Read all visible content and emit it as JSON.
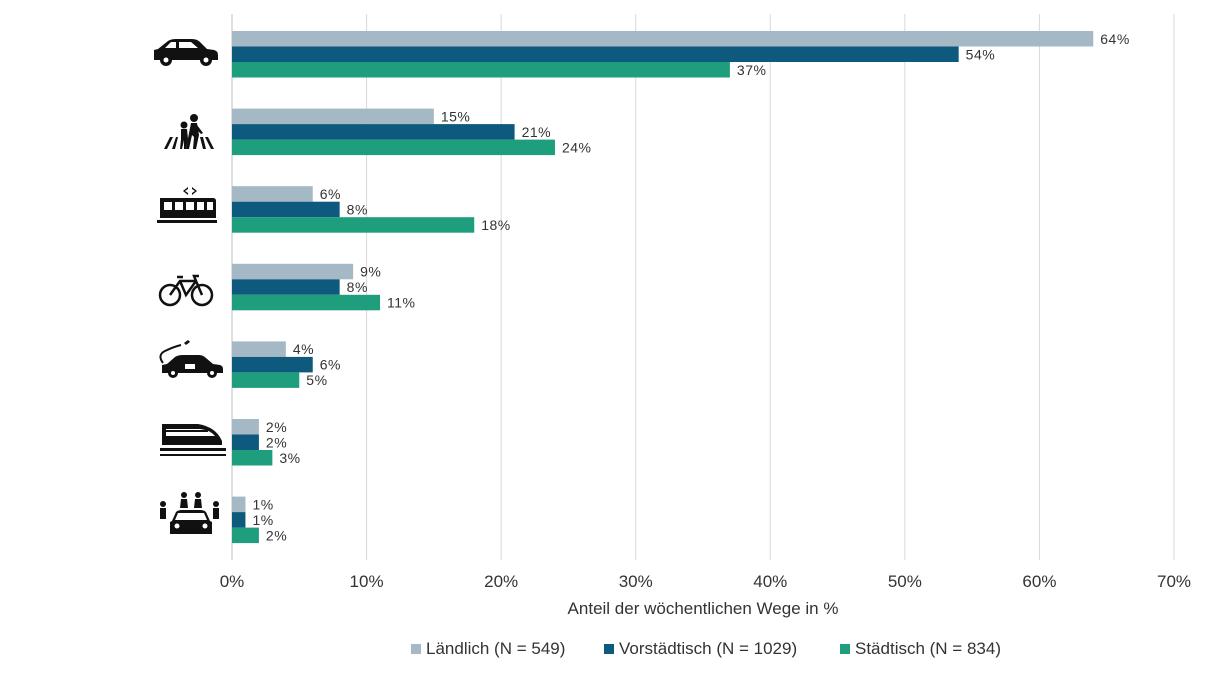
{
  "chart_data": {
    "type": "bar",
    "orientation": "horizontal",
    "categories": [
      "car-icon",
      "pedestrian-icon",
      "tram-icon",
      "bicycle-icon",
      "electric-car-icon",
      "train-icon",
      "carpool-icon"
    ],
    "series": [
      {
        "name": "Ländlich (N = 549)",
        "color": "#a5b8c6",
        "values": [
          64,
          15,
          6,
          9,
          4,
          2,
          1
        ],
        "labels": [
          "64%",
          "15%",
          "6%",
          "9%",
          "4%",
          "2%",
          "1%"
        ]
      },
      {
        "name": "Vorstädtisch (N = 1029)",
        "color": "#0d5a7e",
        "values": [
          54,
          21,
          8,
          8,
          6,
          2,
          1
        ],
        "labels": [
          "54%",
          "21%",
          "8%",
          "8%",
          "6%",
          "2%",
          "1%"
        ]
      },
      {
        "name": "Städtisch (N = 834)",
        "color": "#1e9e7c",
        "values": [
          37,
          24,
          18,
          11,
          5,
          3,
          2
        ],
        "labels": [
          "37%",
          "24%",
          "18%",
          "11%",
          "5%",
          "3%",
          "2%"
        ]
      }
    ],
    "xlabel": "Anteil der wöchentlichen Wege in %",
    "xlim": [
      0,
      70
    ],
    "xticks": [
      "0%",
      "10%",
      "20%",
      "30%",
      "40%",
      "50%",
      "60%",
      "70%"
    ],
    "grid": "vertical",
    "legend": "bottom",
    "category_icons": [
      "car-icon",
      "pedestrian-icon",
      "tram-icon",
      "bicycle-icon",
      "electric-car-icon",
      "train-icon",
      "carpool-icon"
    ]
  }
}
